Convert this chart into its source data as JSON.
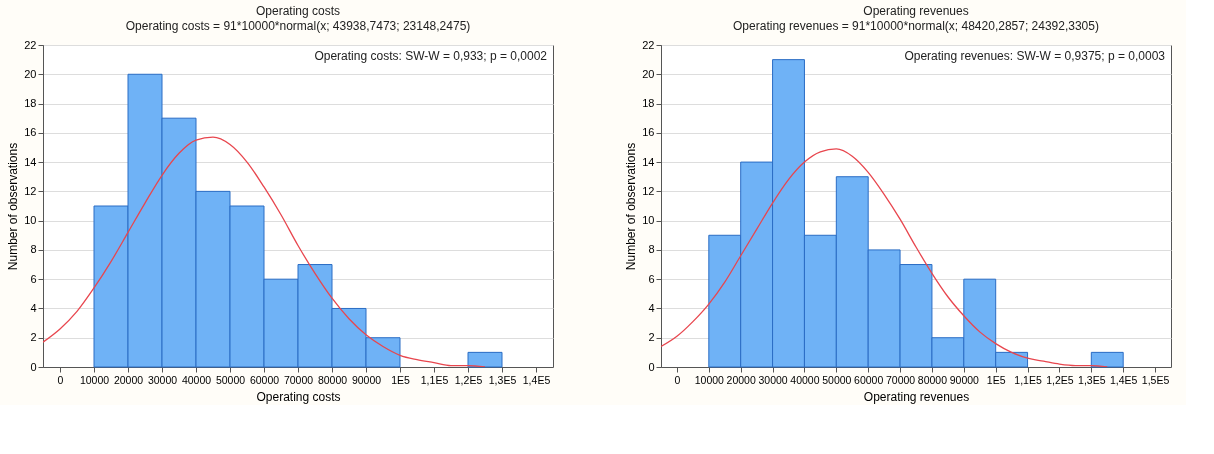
{
  "chart_data": [
    {
      "type": "histogram",
      "title": "Operating costs",
      "subtitle": "Operating costs = 91*10000*normal(x; 43938,7473; 23148,2475)",
      "xlabel": "Operating costs",
      "ylabel": "Number of observations",
      "annotations": [
        "Operating costs:   SW-W = 0,933; p = 0,0002"
      ],
      "bins": [
        10000,
        20000,
        30000,
        40000,
        50000,
        60000,
        70000,
        80000,
        90000,
        100000,
        110000,
        120000,
        130000
      ],
      "values": [
        11,
        20,
        17,
        12,
        11,
        6,
        7,
        4,
        2,
        0,
        0,
        1
      ],
      "color": "#6fb2f6",
      "series": [
        {
          "type": "line",
          "color": "#e8464e",
          "x": [
            -5000,
            0,
            5000,
            10000,
            15000,
            20000,
            25000,
            30000,
            35000,
            40000,
            45000,
            50000,
            55000,
            60000,
            65000,
            70000,
            75000,
            80000,
            85000,
            90000,
            95000,
            100000,
            105000,
            110000,
            115000,
            120000,
            125000
          ],
          "values": [
            1.7,
            2.6,
            3.8,
            5.4,
            7.2,
            9.2,
            11.2,
            13.1,
            14.6,
            15.5,
            15.7,
            15.2,
            14.0,
            12.3,
            10.4,
            8.3,
            6.4,
            4.7,
            3.3,
            2.2,
            1.4,
            0.8,
            0.5,
            0.3,
            0.1,
            0.1,
            0.0
          ]
        }
      ],
      "xlim": [
        -5000,
        145000
      ],
      "xticks": [
        0,
        10000,
        20000,
        30000,
        40000,
        50000,
        60000,
        70000,
        80000,
        90000,
        {
          "value": 100000,
          "label": "1E5"
        },
        {
          "value": 110000,
          "label": "1,1E5"
        },
        {
          "value": 120000,
          "label": "1,2E5"
        },
        {
          "value": 130000,
          "label": "1,3E5"
        },
        {
          "value": 140000,
          "label": "1,4E5"
        }
      ],
      "ylim": [
        0,
        22
      ],
      "yticks": [
        0,
        2,
        4,
        6,
        8,
        10,
        12,
        14,
        16,
        18,
        20,
        22
      ],
      "grid": "y"
    },
    {
      "type": "histogram",
      "title": "Operating revenues",
      "subtitle": "Operating revenues = 91*10000*normal(x; 48420,2857; 24392,3305)",
      "xlabel": "Operating revenues",
      "ylabel": "Number of observations",
      "annotations": [
        "Operating revenues:   SW-W = 0,9375; p = 0,0003"
      ],
      "bins": [
        10000,
        20000,
        30000,
        40000,
        50000,
        60000,
        70000,
        80000,
        90000,
        100000,
        110000,
        120000,
        130000,
        140000
      ],
      "values": [
        9,
        14,
        21,
        9,
        13,
        8,
        7,
        2,
        6,
        1,
        0,
        0,
        1
      ],
      "color": "#6fb2f6",
      "series": [
        {
          "type": "line",
          "color": "#e8464e",
          "x": [
            -5000,
            0,
            5000,
            10000,
            15000,
            20000,
            25000,
            30000,
            35000,
            40000,
            45000,
            50000,
            55000,
            60000,
            65000,
            70000,
            75000,
            80000,
            85000,
            90000,
            95000,
            100000,
            105000,
            110000,
            115000,
            120000,
            125000,
            130000,
            135000
          ],
          "values": [
            1.4,
            2.1,
            3.1,
            4.3,
            5.8,
            7.6,
            9.4,
            11.2,
            12.8,
            14.0,
            14.7,
            14.9,
            14.4,
            13.3,
            11.8,
            10.1,
            8.2,
            6.4,
            4.8,
            3.5,
            2.4,
            1.6,
            1.0,
            0.6,
            0.4,
            0.2,
            0.1,
            0.1,
            0.0
          ]
        }
      ],
      "xlim": [
        -5000,
        155000
      ],
      "xticks": [
        0,
        10000,
        20000,
        30000,
        40000,
        50000,
        60000,
        70000,
        80000,
        90000,
        {
          "value": 100000,
          "label": "1E5"
        },
        {
          "value": 110000,
          "label": "1,1E5"
        },
        {
          "value": 120000,
          "label": "1,2E5"
        },
        {
          "value": 130000,
          "label": "1,3E5"
        },
        {
          "value": 140000,
          "label": "1,4E5"
        },
        {
          "value": 150000,
          "label": "1,5E5"
        }
      ],
      "ylim": [
        0,
        22
      ],
      "yticks": [
        0,
        2,
        4,
        6,
        8,
        10,
        12,
        14,
        16,
        18,
        20,
        22
      ],
      "grid": "y"
    }
  ]
}
